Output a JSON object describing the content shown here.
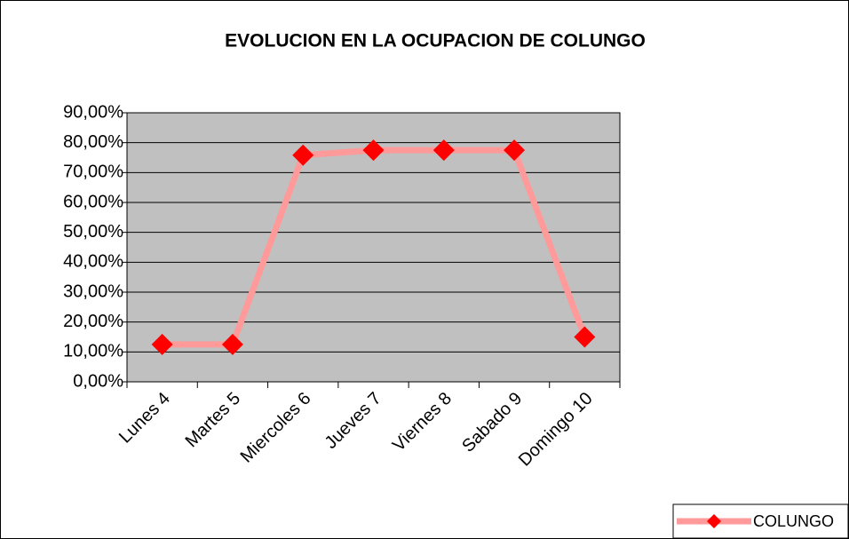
{
  "chart_data": {
    "type": "line",
    "title": "EVOLUCION EN LA OCUPACION DE COLUNGO",
    "categories": [
      "Lunes 4",
      "Martes 5",
      "Miercoles 6",
      "Jueves 7",
      "Viernes 8",
      "Sabado 9",
      "Domingo 10"
    ],
    "series": [
      {
        "name": "COLUNGO",
        "color": "#ff0000",
        "line_color": "#ff9a9a",
        "values": [
          12.5,
          12.5,
          75.8,
          77.5,
          77.5,
          77.5,
          15
        ]
      }
    ],
    "ylim": [
      0,
      90
    ],
    "yticks": [
      {
        "value": 0,
        "label": "0,00%"
      },
      {
        "value": 10,
        "label": "10,00%"
      },
      {
        "value": 20,
        "label": "20,00%"
      },
      {
        "value": 30,
        "label": "30,00%"
      },
      {
        "value": 40,
        "label": "40,00%"
      },
      {
        "value": 50,
        "label": "50,00%"
      },
      {
        "value": 60,
        "label": "60,00%"
      },
      {
        "value": 70,
        "label": "70,00%"
      },
      {
        "value": 80,
        "label": "80,00%"
      },
      {
        "value": 90,
        "label": "90,00%"
      }
    ],
    "grid": true,
    "legend": "bottom-right",
    "plot_background": "#c0c0c0"
  }
}
